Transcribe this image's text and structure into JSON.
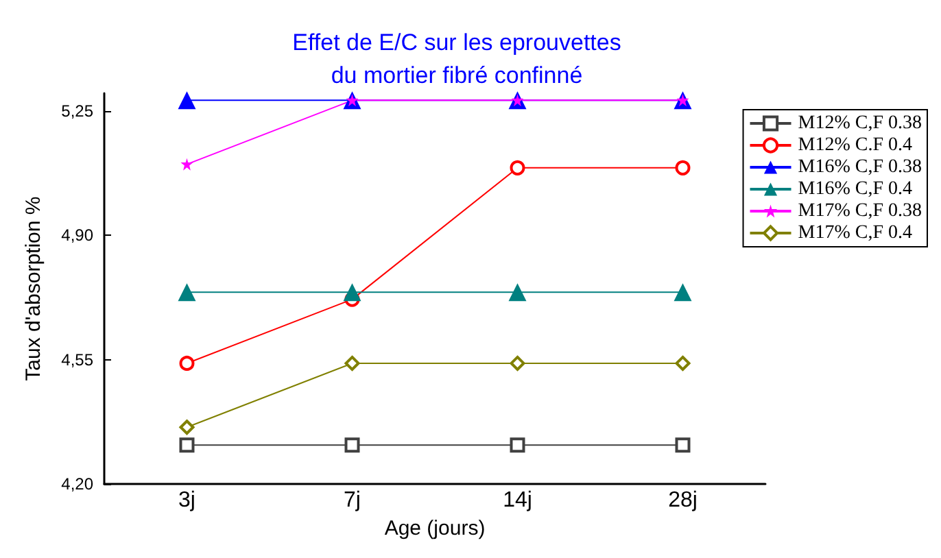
{
  "chart_data": {
    "type": "line",
    "title": "Effet de E/C sur les eprouvettes\ndu mortier fibré confinné",
    "xlabel": "Age (jours)",
    "ylabel": "Taux d'absorption %",
    "categories": [
      "3j",
      "7j",
      "14j",
      "28j"
    ],
    "ylim": [
      4.2,
      5.3
    ],
    "yticks": [
      {
        "value": 4.2,
        "label": "4,20"
      },
      {
        "value": 4.55,
        "label": "4,55"
      },
      {
        "value": 4.9,
        "label": "4,90"
      },
      {
        "value": 5.25,
        "label": "5,25"
      }
    ],
    "grid": false,
    "legend": "top right",
    "series": [
      {
        "name": "M12% C,F 0.38",
        "color": "#404040",
        "marker": "square",
        "values": [
          4.31,
          4.31,
          4.31,
          4.31
        ]
      },
      {
        "name": "M12% C.F 0.4",
        "color": "#ff0000",
        "marker": "circle",
        "values": [
          4.54,
          4.72,
          5.09,
          5.09
        ]
      },
      {
        "name": "M16% C,F 0.38",
        "color": "#0000ff",
        "marker": "triangle",
        "values": [
          5.28,
          5.28,
          5.28,
          5.28
        ]
      },
      {
        "name": "M16% C,F 0.4",
        "color": "#008080",
        "marker": "triangle",
        "values": [
          4.74,
          4.74,
          4.74,
          4.74
        ]
      },
      {
        "name": "M17% C,F 0.38",
        "color": "#ff00ff",
        "marker": "star",
        "values": [
          5.1,
          5.28,
          5.28,
          5.28
        ]
      },
      {
        "name": "M17% C,F 0.4",
        "color": "#808000",
        "marker": "diamond",
        "values": [
          4.36,
          4.54,
          4.54,
          4.54
        ]
      }
    ]
  }
}
